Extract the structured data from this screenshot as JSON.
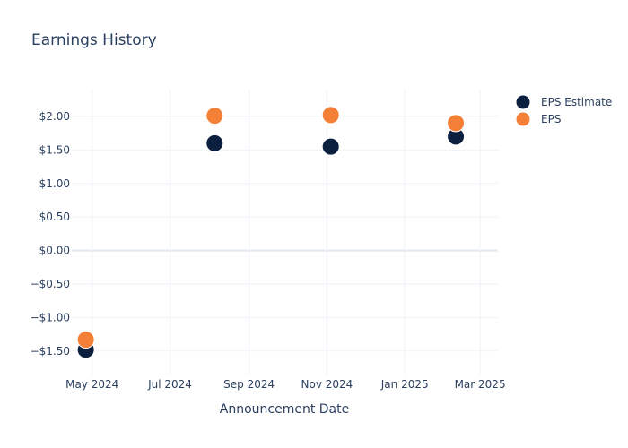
{
  "chart_data": {
    "type": "scatter",
    "title": "Earnings History",
    "xlabel": "Announcement Date",
    "ylabel": "",
    "x_axis": {
      "type": "date",
      "range": [
        "2024-04-15",
        "2025-03-15"
      ],
      "tick_values": [
        "2024-05-01",
        "2024-07-01",
        "2024-09-01",
        "2024-11-01",
        "2025-01-01",
        "2025-03-01"
      ],
      "tick_labels": [
        "May 2024",
        "Jul 2024",
        "Sep 2024",
        "Nov 2024",
        "Jan 2025",
        "Mar 2025"
      ]
    },
    "y_axis": {
      "range": [
        -1.85,
        2.4
      ],
      "tick_values": [
        -1.5,
        -1.0,
        -0.5,
        0,
        0.5,
        1.0,
        1.5,
        2.0
      ],
      "tick_labels": [
        "−$1.50",
        "−$1.00",
        "−$0.50",
        "$0.00",
        "$0.50",
        "$1.00",
        "$1.50",
        "$2.00"
      ]
    },
    "grid": true,
    "legend_position": "top-right",
    "x": [
      "2024-04-26",
      "2024-08-05",
      "2024-11-04",
      "2025-02-10"
    ],
    "series": [
      {
        "name": "EPS Estimate",
        "color": "#0b1f3f",
        "values": [
          -1.48,
          1.6,
          1.55,
          1.7
        ]
      },
      {
        "name": "EPS",
        "color": "#f47f37",
        "values": [
          -1.33,
          2.01,
          2.02,
          1.9
        ]
      }
    ]
  }
}
